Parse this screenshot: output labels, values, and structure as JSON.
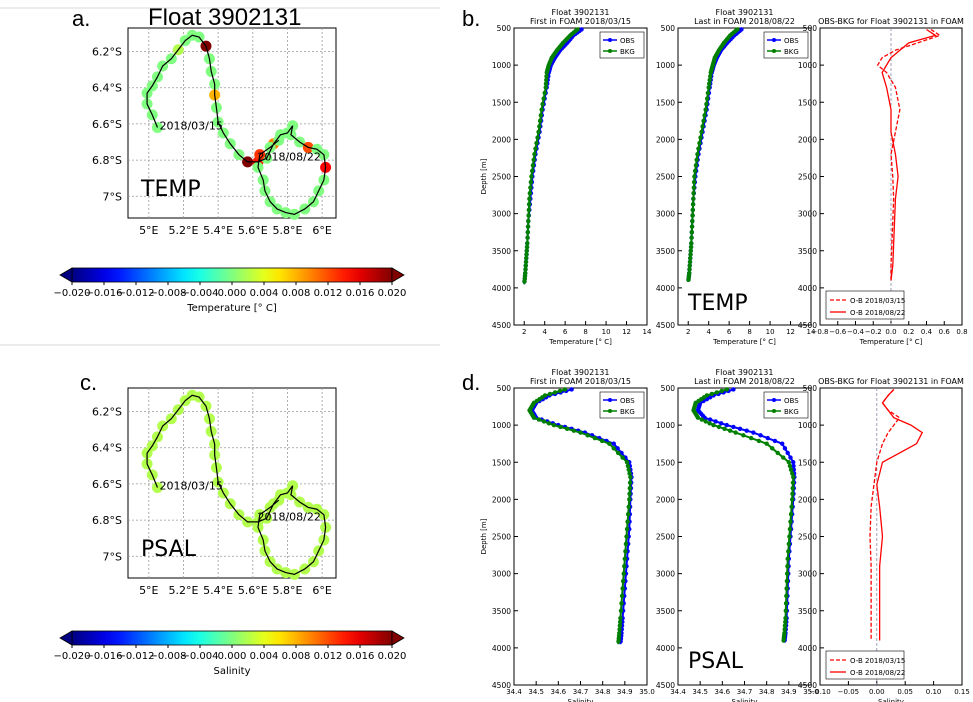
{
  "panels": {
    "a": {
      "letter": "a.",
      "float_title": "Float 3902131",
      "var_label": "TEMP",
      "colorbar_label": "Temperature [$^\\circ C$]"
    },
    "b": {
      "letter": "b.",
      "var_label": "TEMP"
    },
    "c": {
      "letter": "c.",
      "var_label": "PSAL",
      "colorbar_label": "Salinity"
    },
    "d": {
      "letter": "d.",
      "var_label": "PSAL"
    }
  },
  "map_common": {
    "lon_ticks": [
      "5°E",
      "5.2°E",
      "5.4°E",
      "5.6°E",
      "5.8°E",
      "6°E"
    ],
    "lon_values": [
      5.0,
      5.2,
      5.4,
      5.6,
      5.8,
      6.0
    ],
    "lat_ticks": [
      "6.2°S",
      "6.4°S",
      "6.6°S",
      "6.8°S",
      "7°S"
    ],
    "lat_values": [
      -6.2,
      -6.4,
      -6.6,
      -6.8,
      -7.0
    ],
    "xlim": [
      4.88,
      6.08
    ],
    "ylim": [
      -7.12,
      -6.07
    ],
    "start_label": "2018/03/15",
    "end_label": "2018/08/22",
    "start_point": [
      5.05,
      -6.62
    ],
    "end_point": [
      5.65,
      -6.78
    ],
    "track": [
      [
        5.05,
        -6.62
      ],
      [
        5.02,
        -6.55
      ],
      [
        4.99,
        -6.49
      ],
      [
        4.99,
        -6.43
      ],
      [
        5.02,
        -6.39
      ],
      [
        5.05,
        -6.34
      ],
      [
        5.08,
        -6.28
      ],
      [
        5.13,
        -6.24
      ],
      [
        5.17,
        -6.19
      ],
      [
        5.21,
        -6.14
      ],
      [
        5.25,
        -6.11
      ],
      [
        5.29,
        -6.12
      ],
      [
        5.33,
        -6.17
      ],
      [
        5.35,
        -6.24
      ],
      [
        5.36,
        -6.31
      ],
      [
        5.38,
        -6.38
      ],
      [
        5.38,
        -6.44
      ],
      [
        5.39,
        -6.51
      ],
      [
        5.4,
        -6.59
      ],
      [
        5.43,
        -6.65
      ],
      [
        5.47,
        -6.71
      ],
      [
        5.52,
        -6.77
      ],
      [
        5.57,
        -6.81
      ],
      [
        5.63,
        -6.81
      ],
      [
        5.68,
        -6.79
      ],
      [
        5.72,
        -6.71
      ],
      [
        5.76,
        -6.66
      ],
      [
        5.8,
        -6.65
      ],
      [
        5.83,
        -6.61
      ],
      [
        5.82,
        -6.66
      ],
      [
        5.87,
        -6.7
      ],
      [
        5.92,
        -6.73
      ],
      [
        5.97,
        -6.74
      ],
      [
        6.01,
        -6.77
      ],
      [
        6.02,
        -6.84
      ],
      [
        6.01,
        -6.91
      ],
      [
        5.98,
        -6.97
      ],
      [
        5.95,
        -7.03
      ],
      [
        5.9,
        -7.07
      ],
      [
        5.84,
        -7.1
      ],
      [
        5.79,
        -7.09
      ],
      [
        5.74,
        -7.07
      ],
      [
        5.7,
        -7.03
      ],
      [
        5.67,
        -6.97
      ],
      [
        5.66,
        -6.91
      ],
      [
        5.63,
        -6.84
      ],
      [
        5.64,
        -6.77
      ],
      [
        5.7,
        -6.73
      ],
      [
        5.75,
        -6.69
      ]
    ],
    "cbar_ticks": [
      "−0.020",
      "−0.016",
      "−0.012",
      "−0.008",
      "−0.004",
      "0.000",
      "0.004",
      "0.008",
      "0.012",
      "0.016",
      "0.020"
    ],
    "cbar_range": [
      -0.02,
      0.02
    ]
  },
  "chart_data": [
    {
      "type": "scatter",
      "panel": "a",
      "xlabel": "",
      "ylabel": "",
      "point_values": [
        0.0,
        0.0,
        0.0,
        0.0,
        0.0,
        0.0,
        0.0,
        0.0,
        0.002,
        0.0,
        0.0,
        0.0,
        0.02,
        0.0,
        0.0,
        0.0,
        0.008,
        0.0,
        0.0,
        0.0,
        0.0,
        0.0,
        0.02,
        0.014,
        0.0,
        0.01,
        0.0,
        0.0,
        0.0,
        0.0,
        0.0,
        0.012,
        0.0,
        0.0,
        0.015,
        0.0,
        0.0,
        0.0,
        0.0,
        0.0,
        0.0,
        0.0,
        0.0,
        0.0,
        0.0,
        0.0,
        0.013,
        0.0,
        0.0
      ]
    },
    {
      "type": "scatter",
      "panel": "c",
      "xlabel": "",
      "ylabel": "",
      "point_values": [
        0.002,
        0.002,
        0.002,
        0.002,
        0.002,
        0.002,
        0.002,
        0.002,
        0.002,
        0.002,
        0.002,
        0.002,
        0.002,
        0.002,
        0.002,
        0.002,
        0.002,
        0.002,
        0.002,
        0.002,
        0.002,
        0.002,
        0.002,
        0.002,
        0.002,
        0.002,
        0.002,
        0.002,
        0.002,
        0.002,
        0.002,
        0.002,
        0.002,
        0.002,
        0.002,
        0.002,
        0.002,
        0.002,
        0.002,
        0.002,
        0.002,
        0.002,
        0.002,
        0.002,
        0.002,
        0.002,
        0.002,
        0.002,
        0.002
      ]
    },
    {
      "type": "line",
      "panel": "b1",
      "title": "Float 3902131\nFirst in FOAM 2018/03/15",
      "xlabel": "Temperature [$^\\circ C$]",
      "ylabel": "Depth [m]",
      "xlim": [
        1,
        14
      ],
      "ylim": [
        4500,
        500
      ],
      "xticks": [
        2,
        4,
        6,
        8,
        10,
        12,
        14
      ],
      "yticks": [
        500,
        1000,
        1500,
        2000,
        2500,
        3000,
        3500,
        4000,
        4500
      ],
      "legend": [
        "OBS",
        "BKG"
      ],
      "series": [
        {
          "name": "OBS",
          "color": "#0000ff",
          "x": [
            7.6,
            6.8,
            6.2,
            5.5,
            5.0,
            4.6,
            4.4,
            4.2,
            3.8,
            3.5,
            3.1,
            2.8,
            2.6,
            2.4,
            2.3,
            2.2,
            2.1,
            2.0
          ],
          "y": [
            520,
            600,
            700,
            800,
            900,
            1000,
            1100,
            1300,
            1600,
            1900,
            2200,
            2500,
            2800,
            3100,
            3400,
            3600,
            3800,
            3950
          ]
        },
        {
          "name": "BKG",
          "color": "#008000",
          "x": [
            7.2,
            6.5,
            5.8,
            5.2,
            4.7,
            4.4,
            4.2,
            4.1,
            3.7,
            3.4,
            3.0,
            2.7,
            2.5,
            2.4,
            2.3,
            2.2,
            2.1,
            2.0
          ],
          "y": [
            520,
            600,
            700,
            800,
            900,
            1000,
            1100,
            1300,
            1600,
            1900,
            2200,
            2500,
            2800,
            3100,
            3400,
            3600,
            3800,
            3950
          ]
        }
      ]
    },
    {
      "type": "line",
      "panel": "b2",
      "title": "Float 3902131\nLast in FOAM 2018/08/22",
      "xlabel": "Temperature [$^\\circ C$]",
      "ylabel": "",
      "xlim": [
        1,
        14
      ],
      "ylim": [
        4500,
        500
      ],
      "xticks": [
        2,
        4,
        6,
        8,
        10,
        12,
        14
      ],
      "yticks": [
        500,
        1000,
        1500,
        2000,
        2500,
        3000,
        3500,
        4000,
        4500
      ],
      "legend": [
        "OBS",
        "BKG"
      ],
      "series": [
        {
          "name": "OBS",
          "color": "#0000ff",
          "x": [
            7.2,
            6.5,
            5.8,
            5.2,
            4.8,
            4.5,
            4.3,
            4.1,
            3.8,
            3.4,
            3.0,
            2.7,
            2.5,
            2.4,
            2.3,
            2.2,
            2.1,
            2.0
          ],
          "y": [
            520,
            600,
            700,
            800,
            900,
            1000,
            1100,
            1300,
            1600,
            1900,
            2200,
            2500,
            2800,
            3100,
            3400,
            3600,
            3800,
            3920
          ]
        },
        {
          "name": "BKG",
          "color": "#008000",
          "x": [
            6.8,
            6.1,
            5.5,
            5.0,
            4.6,
            4.4,
            4.2,
            4.0,
            3.7,
            3.3,
            2.9,
            2.6,
            2.5,
            2.4,
            2.3,
            2.2,
            2.1,
            2.0
          ],
          "y": [
            520,
            600,
            700,
            800,
            900,
            1000,
            1100,
            1300,
            1600,
            1900,
            2200,
            2500,
            2800,
            3100,
            3400,
            3600,
            3800,
            3920
          ]
        }
      ]
    },
    {
      "type": "line",
      "panel": "b3",
      "title": "OBS-BKG for Float 3902131 in FOAM",
      "xlabel": "Temperature [$^\\circ C$]",
      "ylabel": "",
      "xlim": [
        -0.8,
        0.8
      ],
      "ylim": [
        4500,
        500
      ],
      "xticks": [
        -0.8,
        -0.6,
        -0.4,
        -0.2,
        0.0,
        0.2,
        0.4,
        0.6,
        0.8
      ],
      "yticks": [
        500,
        1000,
        1500,
        2000,
        2500,
        3000,
        3500,
        4000,
        4500
      ],
      "legend": [
        "O-B 2018/03/15",
        "O-B 2018/08/22"
      ],
      "series": [
        {
          "name": "O-B 2018/03/15",
          "color": "#ff0000",
          "dash": true,
          "x": [
            0.45,
            0.55,
            0.3,
            0.05,
            -0.1,
            -0.15,
            -0.05,
            0.05,
            0.1,
            0.05,
            0.0,
            0.02,
            0.03,
            0.02,
            0.01,
            0.0,
            0.0
          ],
          "y": [
            520,
            600,
            700,
            800,
            900,
            1000,
            1100,
            1300,
            1600,
            1900,
            2200,
            2500,
            2800,
            3100,
            3400,
            3700,
            3900
          ]
        },
        {
          "name": "O-B 2018/08/22",
          "color": "#ff0000",
          "dash": false,
          "x": [
            0.4,
            0.5,
            0.2,
            0.1,
            0.0,
            -0.05,
            -0.1,
            -0.05,
            0.0,
            0.0,
            0.05,
            0.08,
            0.05,
            0.04,
            0.03,
            0.02,
            0.0
          ],
          "y": [
            520,
            600,
            700,
            800,
            900,
            1000,
            1100,
            1300,
            1600,
            1900,
            2200,
            2500,
            2800,
            3100,
            3400,
            3700,
            3900
          ]
        }
      ]
    },
    {
      "type": "line",
      "panel": "d1",
      "title": "Float 3902131\nFirst in FOAM 2018/03/15",
      "xlabel": "Salinity",
      "ylabel": "Depth [m]",
      "xlim": [
        34.4,
        35.0
      ],
      "ylim": [
        4500,
        500
      ],
      "xticks": [
        34.4,
        34.5,
        34.6,
        34.7,
        34.8,
        34.9,
        35.0
      ],
      "yticks": [
        500,
        1000,
        1500,
        2000,
        2500,
        3000,
        3500,
        4000,
        4500
      ],
      "legend": [
        "OBS",
        "BKG"
      ],
      "series": [
        {
          "name": "OBS",
          "color": "#0000ff",
          "x": [
            34.66,
            34.56,
            34.5,
            34.48,
            34.5,
            34.6,
            34.72,
            34.85,
            34.92,
            34.93,
            34.925,
            34.92,
            34.91,
            34.9,
            34.89,
            34.885,
            34.88
          ],
          "y": [
            520,
            600,
            700,
            800,
            900,
            1000,
            1100,
            1250,
            1500,
            1700,
            2000,
            2400,
            2800,
            3200,
            3600,
            3800,
            3950
          ]
        },
        {
          "name": "BKG",
          "color": "#008000",
          "x": [
            34.63,
            34.54,
            34.49,
            34.47,
            34.49,
            34.58,
            34.7,
            34.83,
            34.91,
            34.925,
            34.92,
            34.91,
            34.9,
            34.89,
            34.88,
            34.875,
            34.87
          ],
          "y": [
            520,
            600,
            700,
            800,
            900,
            1000,
            1100,
            1250,
            1500,
            1700,
            2000,
            2400,
            2800,
            3200,
            3600,
            3800,
            3950
          ]
        }
      ]
    },
    {
      "type": "line",
      "panel": "d2",
      "title": "Float 3902131\nLast in FOAM 2018/08/22",
      "xlabel": "Salinity",
      "ylabel": "",
      "xlim": [
        34.4,
        35.0
      ],
      "ylim": [
        4500,
        500
      ],
      "xticks": [
        34.4,
        34.5,
        34.6,
        34.7,
        34.8,
        34.9,
        35.0
      ],
      "yticks": [
        500,
        1000,
        1500,
        2000,
        2500,
        3000,
        3500,
        4000,
        4500
      ],
      "legend": [
        "OBS",
        "BKG"
      ],
      "series": [
        {
          "name": "OBS",
          "color": "#0000ff",
          "x": [
            34.65,
            34.56,
            34.5,
            34.49,
            34.52,
            34.62,
            34.74,
            34.87,
            34.92,
            34.925,
            34.92,
            34.91,
            34.9,
            34.895,
            34.89,
            34.885,
            34.88
          ],
          "y": [
            520,
            600,
            700,
            800,
            900,
            1000,
            1100,
            1250,
            1500,
            1700,
            2000,
            2400,
            2800,
            3200,
            3600,
            3800,
            3930
          ]
        },
        {
          "name": "BKG",
          "color": "#008000",
          "x": [
            34.62,
            34.53,
            34.48,
            34.47,
            34.49,
            34.56,
            34.66,
            34.8,
            34.9,
            34.92,
            34.915,
            34.905,
            34.895,
            34.89,
            34.885,
            34.88,
            34.875
          ],
          "y": [
            520,
            600,
            700,
            800,
            900,
            1000,
            1100,
            1250,
            1500,
            1700,
            2000,
            2400,
            2800,
            3200,
            3600,
            3800,
            3930
          ]
        }
      ]
    },
    {
      "type": "line",
      "panel": "d3",
      "title": "OBS-BKG for Float 3902131 in FOAM",
      "xlabel": "Salinity",
      "ylabel": "",
      "xlim": [
        -0.1,
        0.15
      ],
      "ylim": [
        4500,
        500
      ],
      "xticks": [
        -0.1,
        -0.05,
        0.0,
        0.05,
        0.1,
        0.15
      ],
      "yticks": [
        500,
        1000,
        1500,
        2000,
        2500,
        3000,
        3500,
        4000,
        4500
      ],
      "legend": [
        "O-B 2018/03/15",
        "O-B 2018/08/22"
      ],
      "series": [
        {
          "name": "O-B 2018/03/15",
          "color": "#ff0000",
          "dash": true,
          "x": [
            0.03,
            0.02,
            0.01,
            0.02,
            0.04,
            0.03,
            0.02,
            0.01,
            0.0,
            -0.005,
            -0.01,
            -0.012,
            -0.01,
            -0.01,
            -0.01,
            -0.01
          ],
          "y": [
            520,
            600,
            700,
            800,
            900,
            1000,
            1100,
            1250,
            1500,
            1800,
            2100,
            2500,
            2900,
            3300,
            3700,
            3900
          ]
        },
        {
          "name": "O-B 2018/08/22",
          "color": "#ff0000",
          "dash": false,
          "x": [
            0.03,
            0.02,
            0.01,
            0.02,
            0.03,
            0.06,
            0.08,
            0.07,
            0.01,
            0.0,
            0.005,
            0.01,
            0.005,
            0.005,
            0.005,
            0.005
          ],
          "y": [
            520,
            600,
            700,
            800,
            900,
            1000,
            1100,
            1250,
            1500,
            1800,
            2100,
            2500,
            2900,
            3300,
            3700,
            3900
          ]
        }
      ]
    }
  ]
}
